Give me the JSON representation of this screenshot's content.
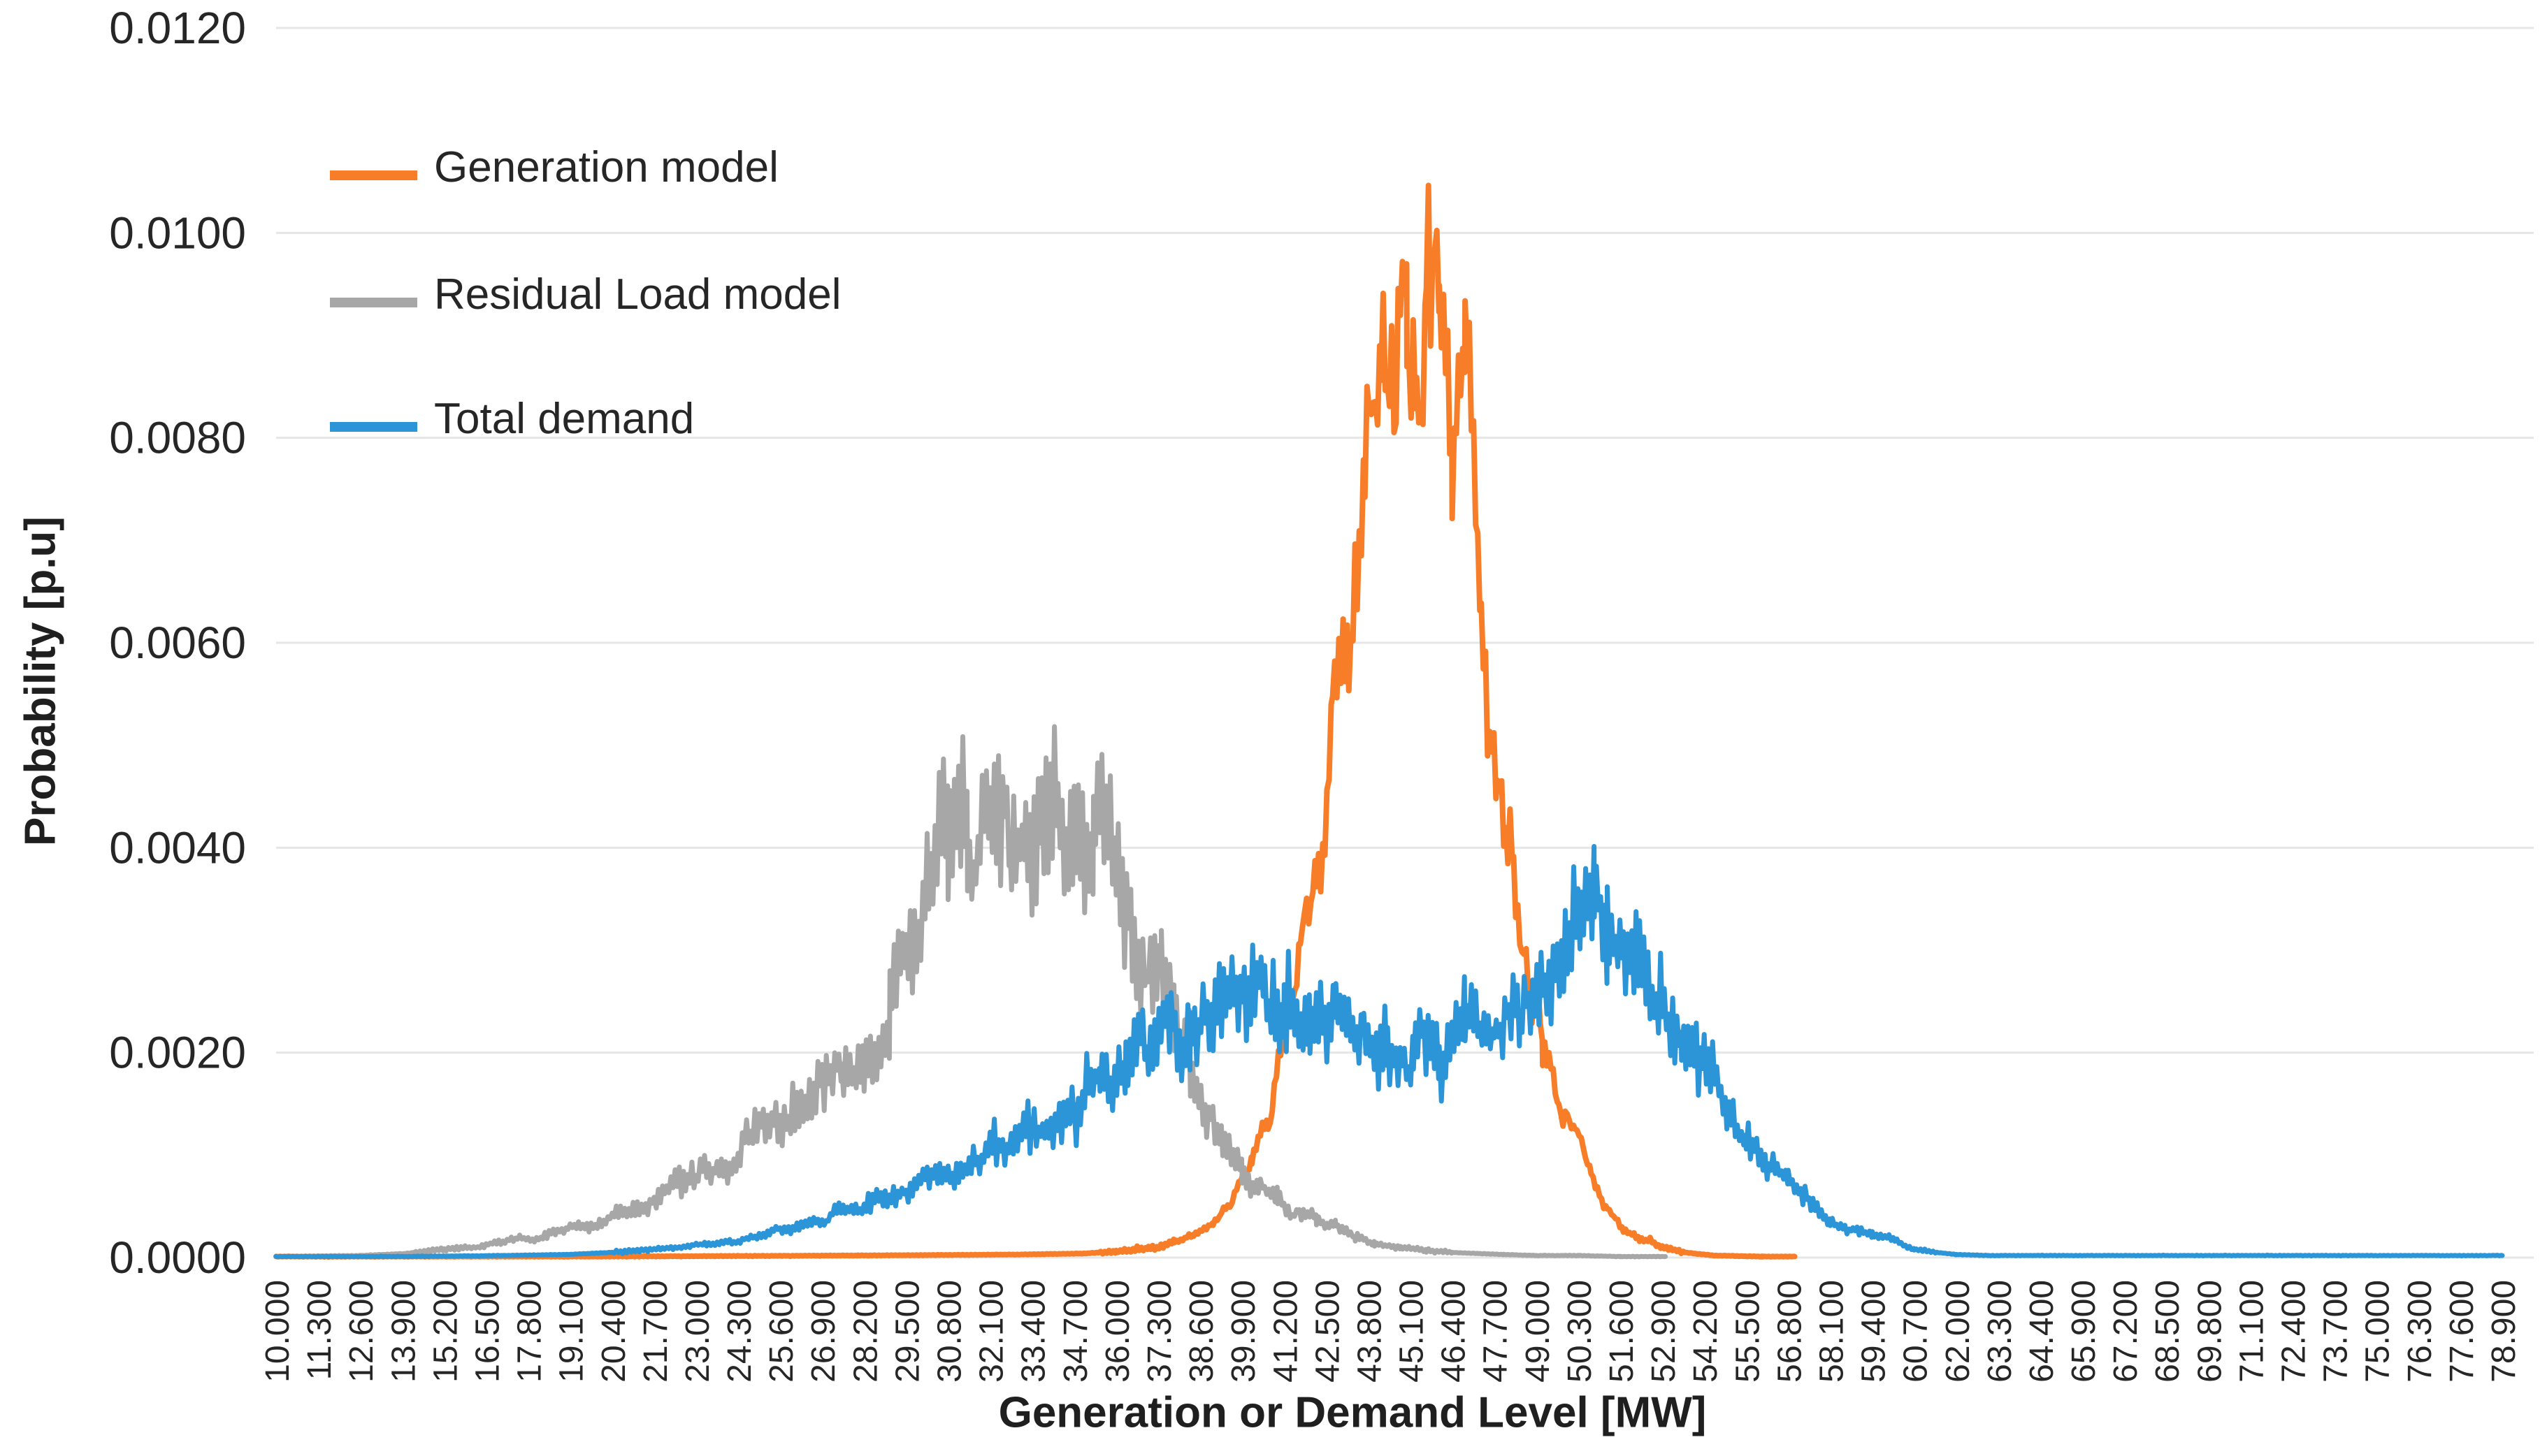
{
  "figure": {
    "background": "#ffffff",
    "grid_color": "#e6e6e6",
    "text_color": "#262626"
  },
  "chart_data": {
    "type": "line",
    "title": "",
    "xlabel": "Generation or Demand Level [MW]",
    "ylabel": "Probability [p.u]",
    "ylim": [
      0,
      0.012
    ],
    "x_range": [
      10,
      78.9
    ],
    "grid": "horizontal",
    "legend_position": "upper-left-inside",
    "y_ticks": [
      [
        0.0,
        "0.0000"
      ],
      [
        0.002,
        "0.0020"
      ],
      [
        0.004,
        "0.0040"
      ],
      [
        0.006,
        "0.0060"
      ],
      [
        0.008,
        "0.0080"
      ],
      [
        0.01,
        "0.0100"
      ],
      [
        0.012,
        "0.0120"
      ]
    ],
    "categories": [
      "10.000",
      "11.300",
      "12.600",
      "13.900",
      "15.200",
      "16.500",
      "17.800",
      "19.100",
      "20.400",
      "21.700",
      "23.000",
      "24.300",
      "25.600",
      "26.900",
      "28.200",
      "29.500",
      "30.800",
      "32.100",
      "33.400",
      "34.700",
      "36.000",
      "37.300",
      "38.600",
      "39.900",
      "41.200",
      "42.500",
      "43.800",
      "45.100",
      "46.400",
      "47.700",
      "49.000",
      "50.300",
      "51.600",
      "52.900",
      "54.200",
      "55.500",
      "56.800",
      "58.100",
      "59.400",
      "60.700",
      "62.000",
      "63.300",
      "64.400",
      "65.900",
      "67.200",
      "68.500",
      "69.800",
      "71.100",
      "72.400",
      "73.700",
      "75.000",
      "76.300",
      "77.600",
      "78.900"
    ],
    "series": [
      {
        "name": "Generation model",
        "color": "#F87D28",
        "stroke_width": 8,
        "seed": 7,
        "noise_rel": 0.045,
        "noise_min": 2e-05,
        "peak": {
          "x_mw": 45.3,
          "y": 0.0097
        },
        "points": [
          [
            10,
            1e-05
          ],
          [
            20,
            1e-05
          ],
          [
            28,
            2e-05
          ],
          [
            33,
            3e-05
          ],
          [
            35,
            4e-05
          ],
          [
            36,
            6e-05
          ],
          [
            37,
            9e-05
          ],
          [
            37.8,
            0.00014
          ],
          [
            38.4,
            0.0002
          ],
          [
            39,
            0.0003
          ],
          [
            39.6,
            0.00055
          ],
          [
            40.2,
            0.0009
          ],
          [
            40.7,
            0.0014
          ],
          [
            41.2,
            0.0021
          ],
          [
            41.7,
            0.003
          ],
          [
            42.2,
            0.0041
          ],
          [
            42.7,
            0.0052
          ],
          [
            43.2,
            0.0063
          ],
          [
            43.7,
            0.0073
          ],
          [
            44.2,
            0.0082
          ],
          [
            44.6,
            0.0088
          ],
          [
            45,
            0.0092
          ],
          [
            45.3,
            0.0094
          ],
          [
            45.6,
            0.0092
          ],
          [
            46,
            0.0088
          ],
          [
            46.4,
            0.0083
          ],
          [
            46.8,
            0.0077
          ],
          [
            47.3,
            0.0068
          ],
          [
            47.8,
            0.0058
          ],
          [
            48.3,
            0.0047
          ],
          [
            48.8,
            0.0035
          ],
          [
            49.2,
            0.0026
          ],
          [
            49.7,
            0.0018
          ],
          [
            50.2,
            0.0012
          ],
          [
            50.7,
            0.0007
          ],
          [
            51.2,
            0.00045
          ],
          [
            51.7,
            0.0003
          ],
          [
            52.2,
            0.0002
          ],
          [
            52.9,
            0.0001
          ],
          [
            53.6,
            5e-05
          ],
          [
            54.5,
            2e-05
          ],
          [
            56,
            1e-05
          ],
          [
            57,
            1e-05
          ]
        ]
      },
      {
        "name": "Residual Load model",
        "color": "#A7A7A7",
        "stroke_width": 7,
        "seed": 3,
        "noise_rel": 0.15,
        "noise_min": 2e-05,
        "peak": {
          "x_mw": 33.2,
          "y": 0.005
        },
        "points": [
          [
            10,
            1e-05
          ],
          [
            12.6,
            2e-05
          ],
          [
            14,
            4e-05
          ],
          [
            15.2,
            8e-05
          ],
          [
            16.5,
            0.00012
          ],
          [
            17.8,
            0.0002
          ],
          [
            19.1,
            0.0003
          ],
          [
            20.4,
            0.0004
          ],
          [
            21.7,
            0.00055
          ],
          [
            23,
            0.0008
          ],
          [
            24.3,
            0.0011
          ],
          [
            25.6,
            0.0014
          ],
          [
            26.9,
            0.0017
          ],
          [
            27.5,
            0.002
          ],
          [
            28.2,
            0.0023
          ],
          [
            29,
            0.0027
          ],
          [
            29.5,
            0.0029
          ],
          [
            30.2,
            0.0032
          ],
          [
            30.8,
            0.0035
          ],
          [
            31.4,
            0.0038
          ],
          [
            32.1,
            0.0041
          ],
          [
            32.7,
            0.0043
          ],
          [
            33.2,
            0.0044
          ],
          [
            33.7,
            0.0043
          ],
          [
            34.2,
            0.0041
          ],
          [
            34.7,
            0.004
          ],
          [
            35.3,
            0.0039
          ],
          [
            36,
            0.0041
          ],
          [
            36.5,
            0.0036
          ],
          [
            37,
            0.0033
          ],
          [
            37.4,
            0.0029
          ],
          [
            37.8,
            0.0025
          ],
          [
            38.3,
            0.002
          ],
          [
            38.8,
            0.0016
          ],
          [
            39.3,
            0.0013
          ],
          [
            39.9,
            0.001
          ],
          [
            40.4,
            0.0008
          ],
          [
            41,
            0.0006
          ],
          [
            41.6,
            0.00045
          ],
          [
            42.2,
            0.00035
          ],
          [
            42.8,
            0.00027
          ],
          [
            43.4,
            0.0002
          ],
          [
            44,
            0.00015
          ],
          [
            44.8,
            0.0001
          ],
          [
            45.6,
            7e-05
          ],
          [
            46.4,
            5e-05
          ],
          [
            47.2,
            4e-05
          ],
          [
            48,
            3e-05
          ],
          [
            49,
            2e-05
          ],
          [
            50.3,
            2e-05
          ],
          [
            51.6,
            1e-05
          ],
          [
            53,
            1e-05
          ]
        ]
      },
      {
        "name": "Total demand",
        "color": "#2C95D8",
        "stroke_width": 7,
        "seed": 11,
        "noise_rel": 0.14,
        "noise_min": 2e-05,
        "peak": {
          "x_mw": 50.8,
          "y": 0.0037
        },
        "points": [
          [
            10,
            1e-05
          ],
          [
            14,
            1e-05
          ],
          [
            17,
            2e-05
          ],
          [
            19,
            3e-05
          ],
          [
            20.4,
            5e-05
          ],
          [
            21.7,
            8e-05
          ],
          [
            23,
            0.00012
          ],
          [
            24.3,
            0.00018
          ],
          [
            25.6,
            0.00025
          ],
          [
            26.9,
            0.00035
          ],
          [
            28.2,
            0.0005
          ],
          [
            29.5,
            0.00065
          ],
          [
            30.8,
            0.0008
          ],
          [
            32.1,
            0.001
          ],
          [
            33.4,
            0.0013
          ],
          [
            34.7,
            0.0016
          ],
          [
            35.5,
            0.0018
          ],
          [
            36.3,
            0.002
          ],
          [
            37,
            0.0022
          ],
          [
            37.7,
            0.0023
          ],
          [
            38.3,
            0.0024
          ],
          [
            39,
            0.0024
          ],
          [
            39.9,
            0.0026
          ],
          [
            40.6,
            0.0025
          ],
          [
            41.2,
            0.0023
          ],
          [
            42,
            0.0022
          ],
          [
            42.8,
            0.0021
          ],
          [
            43.6,
            0.0021
          ],
          [
            44.4,
            0.002
          ],
          [
            45.2,
            0.002
          ],
          [
            46,
            0.002
          ],
          [
            46.8,
            0.0021
          ],
          [
            47.7,
            0.0022
          ],
          [
            48.5,
            0.0024
          ],
          [
            49.2,
            0.0026
          ],
          [
            49.9,
            0.0028
          ],
          [
            50.4,
            0.0031
          ],
          [
            50.8,
            0.0034
          ],
          [
            51.2,
            0.0033
          ],
          [
            51.7,
            0.0031
          ],
          [
            52.2,
            0.0029
          ],
          [
            52.9,
            0.0026
          ],
          [
            53.5,
            0.0023
          ],
          [
            54.2,
            0.0019
          ],
          [
            54.9,
            0.0015
          ],
          [
            55.5,
            0.0012
          ],
          [
            56.2,
            0.00095
          ],
          [
            56.8,
            0.00075
          ],
          [
            57.5,
            0.00055
          ],
          [
            58.1,
            0.0004
          ],
          [
            58.8,
            0.0003
          ],
          [
            59.4,
            0.00022
          ],
          [
            60.1,
            0.00014
          ],
          [
            60.7,
            8e-05
          ],
          [
            61.4,
            5e-05
          ],
          [
            62,
            3e-05
          ],
          [
            63,
            2e-05
          ],
          [
            64.4,
            2e-05
          ],
          [
            66,
            2e-05
          ],
          [
            70,
            2e-05
          ],
          [
            74,
            2e-05
          ],
          [
            78.9,
            2e-05
          ]
        ]
      }
    ]
  }
}
